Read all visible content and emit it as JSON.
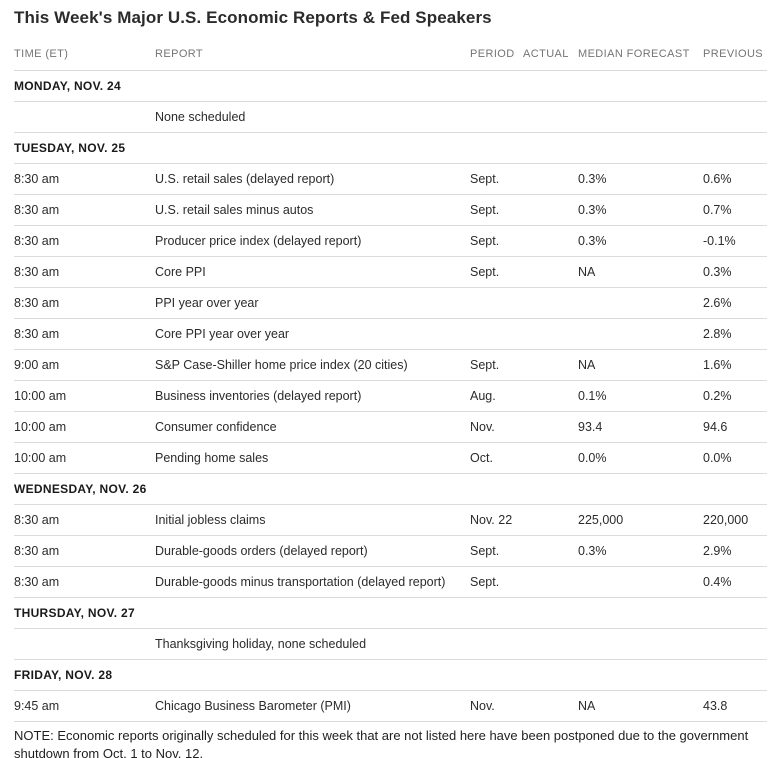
{
  "page": {
    "title": "This Week's Major U.S. Economic Reports & Fed Speakers",
    "note": "NOTE: Economic reports originally scheduled for this week that are not listed here have been postponed due to the government shutdown from Oct. 1 to Nov. 12."
  },
  "colors": {
    "background": "#ffffff",
    "title_text": "#2b2b2b",
    "column_header_text": "#747474",
    "day_header_text": "#1a1a1a",
    "body_text": "#2b2b2b",
    "divider": "#dbdbdb"
  },
  "chart_data": {
    "type": "table",
    "title": "This Week's Major U.S. Economic Reports & Fed Speakers",
    "columns": [
      "TIME (ET)",
      "REPORT",
      "PERIOD",
      "ACTUAL",
      "MEDIAN FORECAST",
      "PREVIOUS"
    ],
    "rows": [
      {
        "type": "day",
        "label": "MONDAY, NOV. 24"
      },
      {
        "type": "info",
        "report": "None scheduled"
      },
      {
        "type": "day",
        "label": "TUESDAY, NOV. 25"
      },
      {
        "type": "data",
        "time": "8:30 am",
        "report": "U.S. retail sales (delayed report)",
        "period": "Sept.",
        "actual": "",
        "forecast": "0.3%",
        "previous": "0.6%"
      },
      {
        "type": "data",
        "time": "8:30 am",
        "report": "U.S. retail sales minus autos",
        "period": "Sept.",
        "actual": "",
        "forecast": "0.3%",
        "previous": "0.7%"
      },
      {
        "type": "data",
        "time": "8:30 am",
        "report": "Producer price index (delayed report)",
        "period": "Sept.",
        "actual": "",
        "forecast": "0.3%",
        "previous": "-0.1%"
      },
      {
        "type": "data",
        "time": "8:30 am",
        "report": "Core PPI",
        "period": "Sept.",
        "actual": "",
        "forecast": "NA",
        "previous": "0.3%"
      },
      {
        "type": "data",
        "time": "8:30 am",
        "report": "PPI year over year",
        "period": "",
        "actual": "",
        "forecast": "",
        "previous": "2.6%"
      },
      {
        "type": "data",
        "time": "8:30 am",
        "report": "Core PPI year over year",
        "period": "",
        "actual": "",
        "forecast": "",
        "previous": "2.8%"
      },
      {
        "type": "data",
        "time": "9:00 am",
        "report": "S&P Case-Shiller home price index (20 cities)",
        "period": "Sept.",
        "actual": "",
        "forecast": "NA",
        "previous": "1.6%"
      },
      {
        "type": "data",
        "time": "10:00 am",
        "report": "Business inventories (delayed report)",
        "period": "Aug.",
        "actual": "",
        "forecast": "0.1%",
        "previous": "0.2%"
      },
      {
        "type": "data",
        "time": "10:00 am",
        "report": "Consumer confidence",
        "period": "Nov.",
        "actual": "",
        "forecast": "93.4",
        "previous": "94.6"
      },
      {
        "type": "data",
        "time": "10:00 am",
        "report": "Pending home sales",
        "period": "Oct.",
        "actual": "",
        "forecast": "0.0%",
        "previous": "0.0%"
      },
      {
        "type": "day",
        "label": "WEDNESDAY, NOV. 26"
      },
      {
        "type": "data",
        "time": "8:30 am",
        "report": "Initial jobless claims",
        "period": "Nov. 22",
        "actual": "",
        "forecast": "225,000",
        "previous": "220,000"
      },
      {
        "type": "data",
        "time": "8:30 am",
        "report": "Durable-goods orders (delayed report)",
        "period": "Sept.",
        "actual": "",
        "forecast": "0.3%",
        "previous": "2.9%"
      },
      {
        "type": "data",
        "time": "8:30 am",
        "report": "Durable-goods minus transportation (delayed report)",
        "period": "Sept.",
        "actual": "",
        "forecast": "",
        "previous": "0.4%"
      },
      {
        "type": "day",
        "label": "THURSDAY, NOV. 27"
      },
      {
        "type": "info",
        "report": "Thanksgiving holiday, none scheduled"
      },
      {
        "type": "day",
        "label": "FRIDAY, NOV. 28"
      },
      {
        "type": "data",
        "time": "9:45 am",
        "report": "Chicago Business Barometer (PMI)",
        "period": "Nov.",
        "actual": "",
        "forecast": "NA",
        "previous": "43.8"
      }
    ]
  }
}
